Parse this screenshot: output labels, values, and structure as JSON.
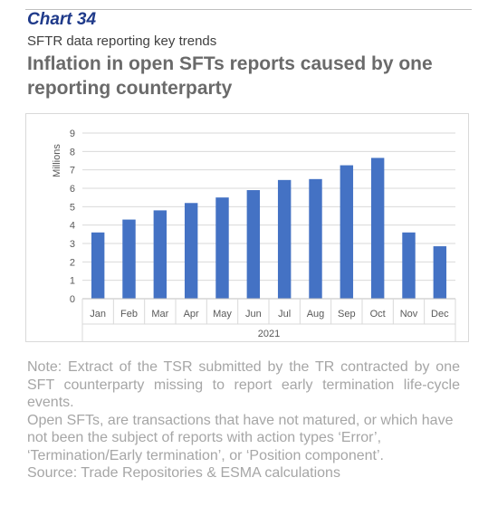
{
  "header": {
    "chart_label": "Chart 34",
    "subtitle": "SFTR data reporting key trends",
    "title": "Inflation in open SFTs reports caused by one reporting counterparty"
  },
  "chart_data": {
    "type": "bar",
    "categories": [
      "Jan",
      "Feb",
      "Mar",
      "Apr",
      "May",
      "Jun",
      "Jul",
      "Aug",
      "Sep",
      "Oct",
      "Nov",
      "Dec"
    ],
    "values": [
      3.6,
      4.3,
      4.8,
      5.2,
      5.5,
      5.9,
      6.45,
      6.5,
      7.25,
      7.65,
      3.6,
      2.85
    ],
    "ylabel": "Millions",
    "xgroup_label": "2021",
    "ylim": [
      0,
      9
    ],
    "yticks": [
      0,
      1,
      2,
      3,
      4,
      5,
      6,
      7,
      8,
      9
    ],
    "grid": true,
    "legend": "none",
    "bar_color": "#4472c4"
  },
  "notes": {
    "note": "Note: Extract of the TSR submitted by the TR contracted by one SFT counterparty missing to report early termination life-cycle events.",
    "definition": "Open SFTs, are transactions that have not matured, or which have not been the subject of reports with action types ‘Error’, ‘Termination/Early termination’, or ‘Position component’.",
    "source": "Source: Trade Repositories & ESMA calculations"
  }
}
